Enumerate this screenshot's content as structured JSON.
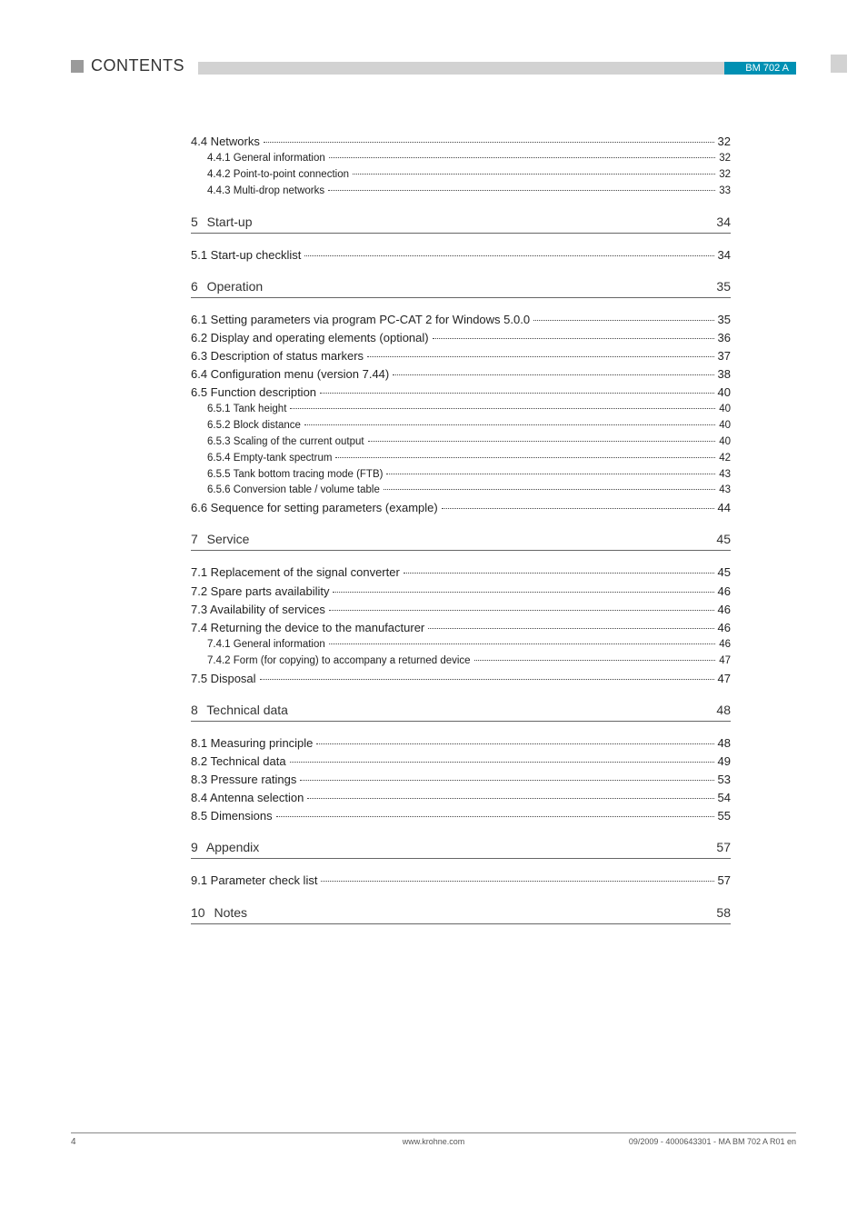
{
  "header": {
    "section_label": "CONTENTS",
    "doc_code": "BM 702 A",
    "marker_color": "#9a9a9a",
    "strip_color_left": "#d2d2d2",
    "strip_color_right": "#0090b3"
  },
  "footer": {
    "page_num": "4",
    "center": "www.krohne.com",
    "right": "09/2009 - 4000643301 - MA BM 702 A R01 en"
  },
  "continuation": [
    {
      "kind": "entry",
      "level": 1,
      "label": "4.4  Networks",
      "page": "32"
    },
    {
      "kind": "entry",
      "level": 2,
      "label": "4.4.1  General information",
      "page": "32"
    },
    {
      "kind": "entry",
      "level": 2,
      "label": "4.4.2  Point-to-point connection",
      "page": "32"
    },
    {
      "kind": "entry",
      "level": 2,
      "label": "4.4.3  Multi-drop networks",
      "page": "33"
    }
  ],
  "chapters": [
    {
      "num": "5",
      "title": "Start-up",
      "page": "34",
      "entries": [
        {
          "kind": "entry",
          "level": 1,
          "label": "5.1  Start-up checklist",
          "page": "34"
        }
      ]
    },
    {
      "num": "6",
      "title": "Operation",
      "page": "35",
      "entries": [
        {
          "kind": "entry",
          "level": 1,
          "label": "6.1  Setting parameters via program PC-CAT 2 for Windows 5.0.0",
          "page": "35"
        },
        {
          "kind": "entry",
          "level": 1,
          "label": "6.2  Display and operating elements (optional)",
          "page": "36"
        },
        {
          "kind": "entry",
          "level": 1,
          "label": "6.3  Description of status markers",
          "page": "37"
        },
        {
          "kind": "entry",
          "level": 1,
          "label": "6.4  Configuration menu (version 7.44)",
          "page": "38"
        },
        {
          "kind": "entry",
          "level": 1,
          "label": "6.5  Function description",
          "page": "40"
        },
        {
          "kind": "entry",
          "level": 2,
          "label": "6.5.1  Tank height",
          "page": "40"
        },
        {
          "kind": "entry",
          "level": 2,
          "label": "6.5.2  Block distance",
          "page": "40"
        },
        {
          "kind": "entry",
          "level": 2,
          "label": "6.5.3  Scaling of the current output",
          "page": "40"
        },
        {
          "kind": "entry",
          "level": 2,
          "label": "6.5.4  Empty-tank spectrum",
          "page": "42"
        },
        {
          "kind": "entry",
          "level": 2,
          "label": "6.5.5  Tank bottom tracing mode (FTB)",
          "page": "43"
        },
        {
          "kind": "entry",
          "level": 2,
          "label": "6.5.6  Conversion table / volume table",
          "page": "43"
        },
        {
          "kind": "entry",
          "level": 1,
          "label": "6.6  Sequence for setting parameters (example)",
          "page": "44"
        }
      ]
    },
    {
      "num": "7",
      "title": "Service",
      "page": "45",
      "entries": [
        {
          "kind": "entry",
          "level": 1,
          "label": "7.1  Replacement of the signal converter",
          "page": "45"
        },
        {
          "kind": "entry",
          "level": 1,
          "label": "7.2  Spare parts availability",
          "page": "46"
        },
        {
          "kind": "entry",
          "level": 1,
          "label": "7.3  Availability of services",
          "page": "46"
        },
        {
          "kind": "entry",
          "level": 1,
          "label": "7.4  Returning the device to the manufacturer",
          "page": "46"
        },
        {
          "kind": "entry",
          "level": 2,
          "label": "7.4.1  General information",
          "page": "46"
        },
        {
          "kind": "entry",
          "level": 2,
          "label": "7.4.2  Form (for copying) to accompany a returned device",
          "page": "47"
        },
        {
          "kind": "entry",
          "level": 1,
          "label": "7.5  Disposal",
          "page": "47"
        }
      ]
    },
    {
      "num": "8",
      "title": "Technical data",
      "page": "48",
      "entries": [
        {
          "kind": "entry",
          "level": 1,
          "label": "8.1  Measuring principle",
          "page": "48"
        },
        {
          "kind": "entry",
          "level": 1,
          "label": "8.2  Technical data",
          "page": "49"
        },
        {
          "kind": "entry",
          "level": 1,
          "label": "8.3  Pressure ratings",
          "page": "53"
        },
        {
          "kind": "entry",
          "level": 1,
          "label": "8.4  Antenna selection",
          "page": "54"
        },
        {
          "kind": "entry",
          "level": 1,
          "label": "8.5  Dimensions",
          "page": "55"
        }
      ]
    },
    {
      "num": "9",
      "title": "Appendix",
      "page": "57",
      "entries": [
        {
          "kind": "entry",
          "level": 1,
          "label": "9.1  Parameter check list",
          "page": "57"
        }
      ]
    },
    {
      "num": "10",
      "title": "Notes",
      "page": "58",
      "entries": []
    }
  ]
}
